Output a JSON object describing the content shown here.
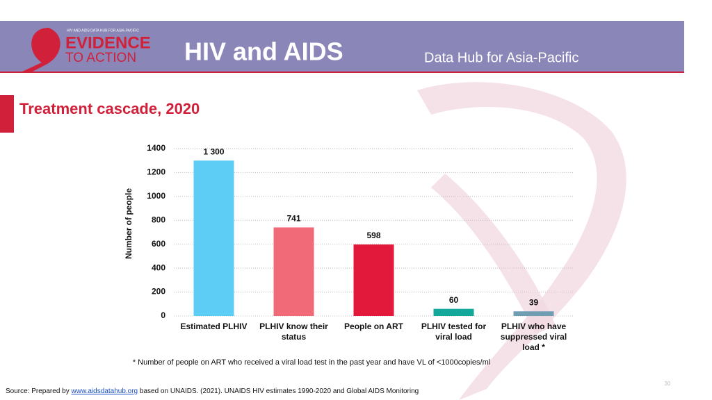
{
  "header": {
    "logo_top": "HIV AND AIDS DATA HUB FOR ASIA-PACIFIC",
    "logo_line1": "EVIDENCE",
    "logo_line2": "TO ACTION",
    "title": "HIV and AIDS",
    "subtitle": "Data Hub for Asia-Pacific"
  },
  "slide_title": "Treatment cascade, 2020",
  "chart_data": {
    "type": "bar",
    "y_label": "Number of people",
    "categories": [
      "Estimated PLHIV",
      "PLHIV know their status",
      "People on ART",
      "PLHIV tested for viral load",
      "PLHIV who have suppressed viral load *"
    ],
    "values": [
      1300,
      741,
      598,
      60,
      39
    ],
    "value_labels": [
      "1 300",
      "741",
      "598",
      "60",
      "39"
    ],
    "colors": [
      "#5ecdf6",
      "#f06b77",
      "#e3193b",
      "#13a899",
      "#6f9db2"
    ],
    "ylim": [
      0,
      1400
    ],
    "yticks": [
      0,
      200,
      400,
      600,
      800,
      1000,
      1200,
      1400
    ],
    "grid": true
  },
  "footnote": "* Number of people on ART who received a viral load test in the past year and have VL of <1000copies/ml",
  "source": {
    "prefix": "Source: Prepared by",
    "link": "www.aidsdatahub.org",
    "suffix": "based on UNAIDS. (2021). UNAIDS HIV estimates 1990-2020 and Global AIDS Monitoring"
  },
  "page_number": "30"
}
